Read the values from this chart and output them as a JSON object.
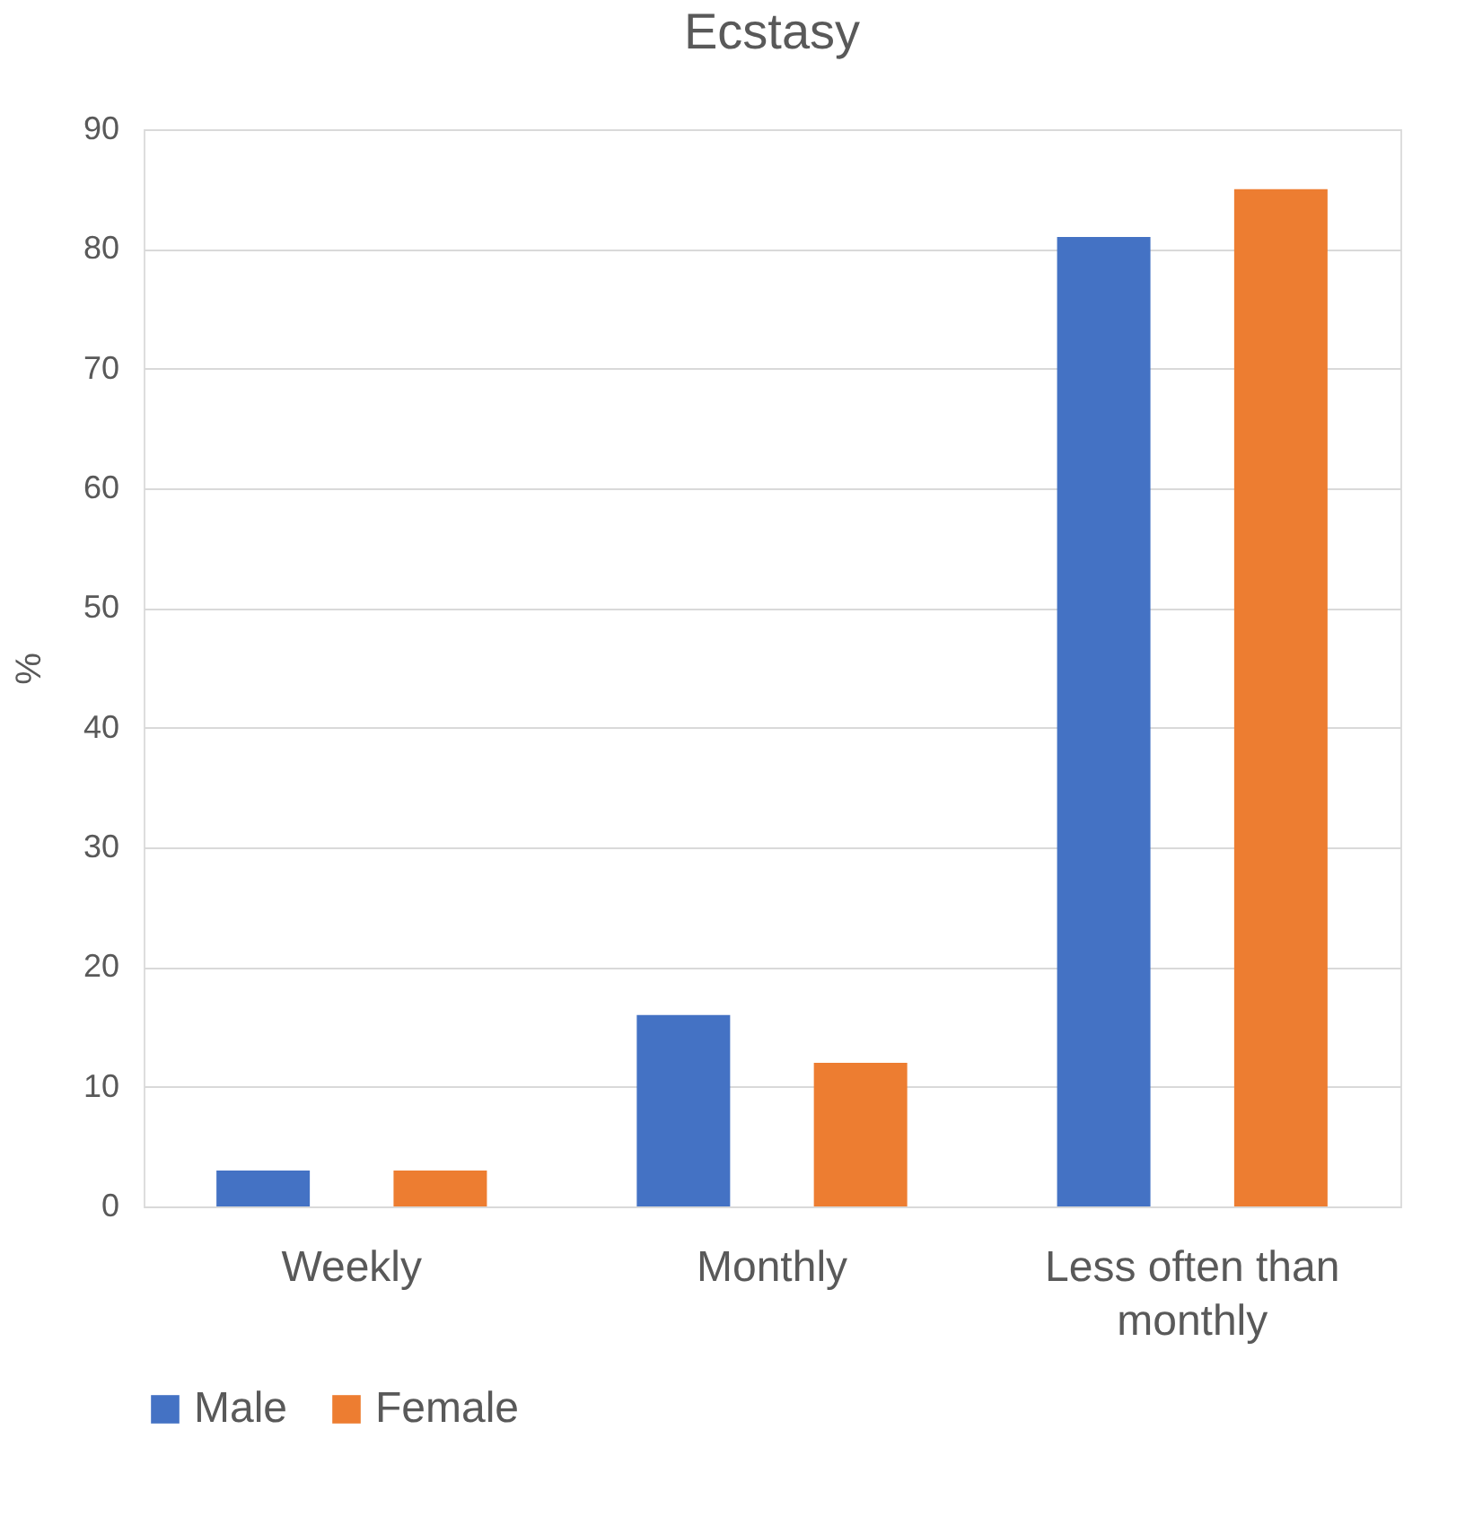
{
  "chart_data": {
    "type": "bar",
    "title": "Ecstasy",
    "ylabel": "%",
    "categories": [
      "Weekly",
      "Monthly",
      "Less often than monthly"
    ],
    "series": [
      {
        "name": "Male",
        "color": "#4472c4",
        "values": [
          3,
          16,
          81
        ]
      },
      {
        "name": "Female",
        "color": "#ed7d31",
        "values": [
          3,
          12,
          85
        ]
      }
    ],
    "ylim": [
      0,
      90
    ],
    "yticks": [
      0,
      10,
      20,
      30,
      40,
      50,
      60,
      70,
      80,
      90
    ],
    "grid": "y",
    "legend": "bottom"
  }
}
